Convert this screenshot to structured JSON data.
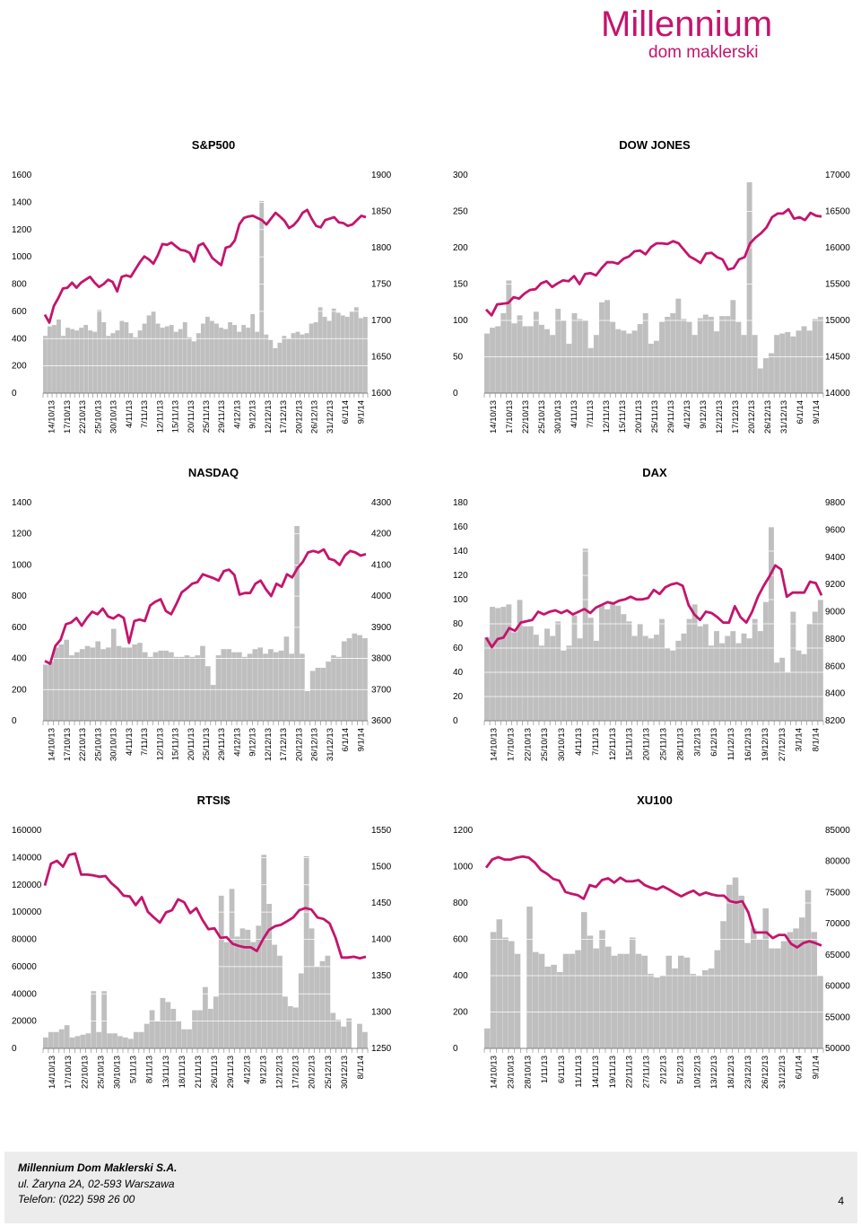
{
  "brand": {
    "name_line1": "Millennium",
    "name_line2": "dom maklerski",
    "color": "#c4146c"
  },
  "colors": {
    "line": "#c4146c",
    "bar": "#bfbfbf",
    "grid": "#ffffff"
  },
  "footer": {
    "company": "Millennium Dom Maklerski S.A.",
    "address": "ul. Żaryna 2A, 02-593 Warszawa",
    "phone": "Telefon: (022) 598 26 00",
    "page": "4"
  },
  "chart_data": [
    {
      "type": "bar+line",
      "title": "S&P500",
      "left_axis": {
        "ticks": [
          "0",
          "200",
          "400",
          "600",
          "800",
          "1000",
          "1200",
          "1400",
          "1600"
        ],
        "ylim": [
          0,
          1600
        ],
        "series": "volume"
      },
      "right_axis": {
        "ticks": [
          "1600",
          "1650",
          "1700",
          "1750",
          "1800",
          "1850",
          "1900"
        ],
        "ylim": [
          1600,
          1900
        ],
        "series": "index"
      },
      "x_labels": [
        "14/10/13",
        "17/10/13",
        "22/10/13",
        "25/10/13",
        "30/10/13",
        "4/11/13",
        "7/11/13",
        "12/11/13",
        "15/11/13",
        "20/11/13",
        "25/11/13",
        "29/11/13",
        "4/12/13",
        "9/12/13",
        "12/12/13",
        "17/12/13",
        "20/12/13",
        "26/12/13",
        "31/12/13",
        "6/1/14",
        "9/1/14"
      ],
      "bars": [
        420,
        490,
        500,
        540,
        420,
        480,
        470,
        460,
        480,
        500,
        460,
        450,
        610,
        520,
        420,
        440,
        460,
        530,
        520,
        440,
        410,
        460,
        510,
        570,
        600,
        510,
        480,
        490,
        500,
        450,
        470,
        520,
        410,
        380,
        440,
        510,
        560,
        530,
        510,
        480,
        470,
        520,
        500,
        450,
        500,
        480,
        580,
        450,
        1410,
        430,
        390,
        330,
        370,
        420,
        400,
        440,
        450,
        430,
        440,
        510,
        520,
        630,
        560,
        530,
        620,
        590,
        570,
        560,
        600,
        630,
        550,
        560
      ],
      "values": [
        1708,
        1697,
        1720,
        1731,
        1744,
        1745,
        1752,
        1745,
        1752,
        1756,
        1760,
        1752,
        1746,
        1750,
        1756,
        1753,
        1740,
        1760,
        1762,
        1760,
        1770,
        1780,
        1788,
        1784,
        1778,
        1790,
        1805,
        1804,
        1807,
        1802,
        1797,
        1796,
        1793,
        1781,
        1803,
        1806,
        1797,
        1786,
        1781,
        1776,
        1800,
        1802,
        1810,
        1832,
        1841,
        1843,
        1844,
        1841,
        1838,
        1832,
        1840,
        1848,
        1843,
        1837,
        1827,
        1831,
        1838,
        1848,
        1852,
        1840,
        1830,
        1828,
        1838,
        1840,
        1842,
        1835,
        1834,
        1830,
        1832,
        1838,
        1844,
        1842
      ]
    },
    {
      "type": "bar+line",
      "title": "DOW JONES",
      "left_axis": {
        "ticks": [
          "0",
          "50",
          "100",
          "150",
          "200",
          "250",
          "300"
        ],
        "ylim": [
          0,
          300
        ],
        "series": "volume"
      },
      "right_axis": {
        "ticks": [
          "14000",
          "14500",
          "15000",
          "15500",
          "16000",
          "16500",
          "17000"
        ],
        "ylim": [
          14000,
          17000
        ],
        "series": "index"
      },
      "x_labels": [
        "14/10/13",
        "17/10/13",
        "22/10/13",
        "25/10/13",
        "30/10/13",
        "4/11/13",
        "7/11/13",
        "12/11/13",
        "15/11/13",
        "20/11/13",
        "25/11/13",
        "29/11/13",
        "4/12/13",
        "9/12/13",
        "12/12/13",
        "17/12/13",
        "20/12/13",
        "26/12/13",
        "31/12/13",
        "6/1/14",
        "9/1/14"
      ],
      "bars": [
        82,
        90,
        92,
        110,
        155,
        96,
        107,
        92,
        92,
        112,
        94,
        88,
        80,
        116,
        100,
        68,
        110,
        102,
        100,
        62,
        80,
        125,
        128,
        98,
        88,
        86,
        82,
        86,
        95,
        110,
        68,
        72,
        98,
        105,
        110,
        130,
        102,
        98,
        80,
        103,
        108,
        105,
        85,
        106,
        106,
        128,
        98,
        80,
        290,
        80,
        34,
        48,
        55,
        80,
        82,
        84,
        78,
        86,
        92,
        86,
        102,
        105
      ],
      "values": [
        15150,
        15070,
        15220,
        15230,
        15240,
        15320,
        15300,
        15370,
        15420,
        15430,
        15510,
        15540,
        15460,
        15510,
        15550,
        15540,
        15610,
        15500,
        15640,
        15650,
        15620,
        15720,
        15800,
        15800,
        15780,
        15850,
        15880,
        15950,
        15960,
        15910,
        16010,
        16060,
        16060,
        16050,
        16090,
        16060,
        15970,
        15880,
        15840,
        15790,
        15920,
        15930,
        15870,
        15840,
        15700,
        15720,
        15840,
        15870,
        16060,
        16140,
        16200,
        16280,
        16420,
        16470,
        16470,
        16530,
        16400,
        16420,
        16380,
        16480,
        16440,
        16430
      ]
    },
    {
      "type": "bar+line",
      "title": "NASDAQ",
      "left_axis": {
        "ticks": [
          "0",
          "200",
          "400",
          "600",
          "800",
          "1000",
          "1200",
          "1400"
        ],
        "ylim": [
          0,
          1400
        ],
        "series": "volume"
      },
      "right_axis": {
        "ticks": [
          "3600",
          "3700",
          "3800",
          "3900",
          "4000",
          "4100",
          "4200",
          "4300"
        ],
        "ylim": [
          3600,
          4300
        ],
        "series": "index"
      },
      "x_labels": [
        "14/10/13",
        "17/10/13",
        "22/10/13",
        "25/10/13",
        "30/10/13",
        "4/11/13",
        "7/11/13",
        "12/11/13",
        "15/11/13",
        "20/11/13",
        "25/11/13",
        "29/11/13",
        "4/12/13",
        "9/12/13",
        "12/12/13",
        "17/12/13",
        "20/12/13",
        "26/12/13",
        "31/12/13",
        "6/1/14",
        "9/1/14"
      ],
      "bars": [
        360,
        380,
        470,
        490,
        520,
        420,
        440,
        460,
        480,
        470,
        510,
        460,
        470,
        590,
        480,
        470,
        470,
        490,
        500,
        440,
        410,
        440,
        450,
        450,
        440,
        410,
        410,
        420,
        410,
        420,
        480,
        350,
        230,
        420,
        460,
        460,
        440,
        440,
        410,
        430,
        460,
        470,
        430,
        460,
        440,
        450,
        540,
        430,
        1250,
        430,
        190,
        320,
        340,
        340,
        380,
        420,
        410,
        510,
        530,
        560,
        550,
        530
      ],
      "values": [
        3792,
        3783,
        3840,
        3860,
        3910,
        3915,
        3930,
        3905,
        3930,
        3950,
        3942,
        3960,
        3935,
        3928,
        3940,
        3930,
        3850,
        3920,
        3925,
        3920,
        3970,
        3982,
        3990,
        3952,
        3942,
        3975,
        4012,
        4025,
        4040,
        4045,
        4070,
        4064,
        4058,
        4050,
        4080,
        4085,
        4068,
        4005,
        4010,
        4010,
        4040,
        4050,
        4022,
        4000,
        4040,
        4030,
        4070,
        4060,
        4090,
        4110,
        4140,
        4145,
        4140,
        4150,
        4120,
        4115,
        4100,
        4130,
        4145,
        4140,
        4130,
        4135
      ]
    },
    {
      "type": "bar+line",
      "title": "DAX",
      "left_axis": {
        "ticks": [
          "0",
          "20",
          "40",
          "60",
          "80",
          "100",
          "120",
          "140",
          "160",
          "180"
        ],
        "ylim": [
          0,
          180
        ],
        "series": "volume"
      },
      "right_axis": {
        "ticks": [
          "8200",
          "8400",
          "8600",
          "8800",
          "9000",
          "9200",
          "9400",
          "9600",
          "9800"
        ],
        "ylim": [
          8200,
          9800
        ],
        "series": "index"
      },
      "x_labels": [
        "14/10/13",
        "17/10/13",
        "22/10/13",
        "25/10/13",
        "30/10/13",
        "4/11/13",
        "7/11/13",
        "12/11/13",
        "15/11/13",
        "20/11/13",
        "25/11/13",
        "28/11/13",
        "3/12/13",
        "6/12/13",
        "11/12/13",
        "16/12/13",
        "19/12/13",
        "27/12/13",
        "3/1/14",
        "8/1/14"
      ],
      "bars": [
        69,
        94,
        93,
        94,
        96,
        73,
        100,
        78,
        78,
        71,
        62,
        76,
        70,
        82,
        58,
        62,
        87,
        68,
        142,
        85,
        66,
        95,
        92,
        98,
        95,
        88,
        82,
        70,
        80,
        70,
        68,
        71,
        84,
        60,
        58,
        66,
        72,
        84,
        96,
        78,
        80,
        62,
        74,
        64,
        70,
        74,
        64,
        72,
        68,
        84,
        74,
        98,
        160,
        48,
        52,
        40,
        90,
        58,
        55,
        80,
        90,
        100
      ],
      "values": [
        8810,
        8740,
        8800,
        8810,
        8880,
        8860,
        8920,
        8930,
        8940,
        9000,
        8980,
        9000,
        9010,
        8990,
        9010,
        8980,
        9000,
        9020,
        8990,
        9030,
        9050,
        9070,
        9060,
        9080,
        9090,
        9110,
        9090,
        9090,
        9100,
        9160,
        9130,
        9180,
        9200,
        9210,
        9190,
        9050,
        8980,
        8940,
        9000,
        8990,
        8960,
        8920,
        8920,
        9040,
        8960,
        8920,
        9000,
        9110,
        9190,
        9260,
        9340,
        9310,
        9110,
        9140,
        9140,
        9140,
        9220,
        9210,
        9120
      ]
    },
    {
      "type": "bar+line",
      "title": "RTSI$",
      "left_axis": {
        "ticks": [
          "0",
          "20000",
          "40000",
          "60000",
          "80000",
          "100000",
          "120000",
          "140000",
          "160000"
        ],
        "ylim": [
          0,
          160000
        ],
        "series": "volume"
      },
      "right_axis": {
        "ticks": [
          "1250",
          "1300",
          "1350",
          "1400",
          "1450",
          "1500",
          "1550"
        ],
        "ylim": [
          1250,
          1550
        ],
        "series": "index"
      },
      "x_labels": [
        "14/10/13",
        "17/10/13",
        "22/10/13",
        "25/10/13",
        "30/10/13",
        "5/11/13",
        "8/11/13",
        "13/11/13",
        "18/11/13",
        "21/11/13",
        "26/11/13",
        "29/11/13",
        "4/12/13",
        "9/12/13",
        "12/12/13",
        "17/12/13",
        "20/12/13",
        "25/12/13",
        "30/12/13",
        "8/1/14"
      ],
      "bars": [
        8000,
        12000,
        12000,
        14000,
        17000,
        8000,
        9000,
        10000,
        11000,
        42000,
        12000,
        42000,
        11000,
        11000,
        9000,
        8000,
        7000,
        12000,
        12000,
        18000,
        28000,
        20000,
        37000,
        34000,
        29000,
        20000,
        14000,
        14000,
        28000,
        28000,
        45000,
        29000,
        38000,
        112000,
        78000,
        117000,
        82000,
        88000,
        87000,
        78000,
        90000,
        142000,
        106000,
        76000,
        68000,
        38000,
        31000,
        30000,
        55000,
        141000,
        88000,
        60000,
        64000,
        68000,
        26000,
        21000,
        16000,
        22000,
        0,
        18000,
        12000
      ],
      "values": [
        1474,
        1504,
        1508,
        1500,
        1516,
        1518,
        1489,
        1489,
        1488,
        1486,
        1487,
        1477,
        1470,
        1460,
        1459,
        1447,
        1458,
        1438,
        1430,
        1423,
        1437,
        1440,
        1455,
        1451,
        1436,
        1443,
        1427,
        1414,
        1415,
        1402,
        1403,
        1394,
        1391,
        1389,
        1389,
        1384,
        1400,
        1413,
        1418,
        1420,
        1425,
        1430,
        1440,
        1443,
        1441,
        1430,
        1428,
        1422,
        1402,
        1375,
        1375,
        1376,
        1374,
        1376
      ]
    },
    {
      "type": "bar+line",
      "title": "XU100",
      "left_axis": {
        "ticks": [
          "0",
          "200",
          "400",
          "600",
          "800",
          "1000",
          "1200"
        ],
        "ylim": [
          0,
          1200
        ],
        "series": "volume"
      },
      "right_axis": {
        "ticks": [
          "50000",
          "55000",
          "60000",
          "65000",
          "70000",
          "75000",
          "80000",
          "85000"
        ],
        "ylim": [
          50000,
          85000
        ],
        "series": "index"
      },
      "x_labels": [
        "14/10/13",
        "23/10/13",
        "28/10/13",
        "1/11/13",
        "6/11/13",
        "11/11/13",
        "14/11/13",
        "19/11/13",
        "22/11/13",
        "27/11/13",
        "2/12/13",
        "5/12/13",
        "10/12/13",
        "13/12/13",
        "18/12/13",
        "23/12/13",
        "26/12/13",
        "31/12/13",
        "6/1/14",
        "9/1/14"
      ],
      "bars": [
        110,
        640,
        710,
        610,
        590,
        520,
        0,
        780,
        530,
        520,
        450,
        460,
        420,
        520,
        520,
        540,
        750,
        620,
        550,
        650,
        560,
        510,
        520,
        520,
        610,
        520,
        510,
        410,
        390,
        400,
        510,
        440,
        510,
        500,
        410,
        400,
        430,
        440,
        540,
        700,
        900,
        940,
        840,
        580,
        660,
        600,
        770,
        550,
        550,
        590,
        640,
        660,
        720,
        870,
        640,
        400
      ],
      "values": [
        79000,
        80300,
        80700,
        80300,
        80300,
        80600,
        80800,
        80600,
        79800,
        78600,
        78000,
        77200,
        76900,
        75100,
        74800,
        74600,
        74000,
        76200,
        75900,
        77000,
        77300,
        76600,
        77400,
        76800,
        76800,
        77000,
        76200,
        75800,
        75500,
        76000,
        75500,
        74900,
        74400,
        74900,
        75300,
        74600,
        75000,
        74700,
        74500,
        74500,
        73600,
        73400,
        73600,
        71800,
        68600,
        68600,
        68600,
        67700,
        68200,
        68200,
        66800,
        66200,
        66900,
        67200,
        66900,
        66500
      ]
    }
  ]
}
